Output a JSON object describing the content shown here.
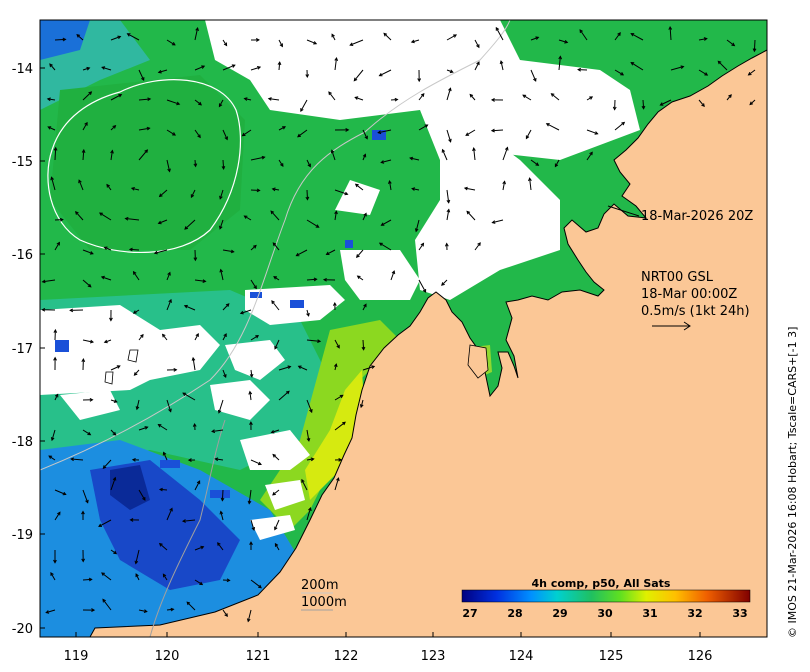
{
  "map": {
    "lon_ticks": [
      "119",
      "120",
      "121",
      "122",
      "123",
      "124",
      "125",
      "126"
    ],
    "lat_ticks": [
      "-14",
      "-15",
      "-16",
      "-17",
      "-18",
      "-19",
      "-20"
    ],
    "timestamp_label": "18-Mar-2026 20Z",
    "current_model": "NRT00 GSL",
    "current_time": "18-Mar 00:00Z",
    "vector_scale": "0.5m/s (1kt 24h)",
    "depth_contour_200": "200m",
    "depth_contour_1000": "1000m",
    "credit": "© IMOS 21-Mar-2026 16:08 Hobart; Tscale=CARS+[-1 3]",
    "colorbar_title": "4h comp, p50, All Sats",
    "colorbar_ticks": [
      "27",
      "28",
      "29",
      "30",
      "31",
      "32",
      "33"
    ],
    "colors": {
      "land": "#fbc796",
      "no_data": "#ffffff",
      "sst_cool": "#1030b0",
      "sst_mid": "#18b040",
      "sst_warm": "#e8f000"
    }
  }
}
